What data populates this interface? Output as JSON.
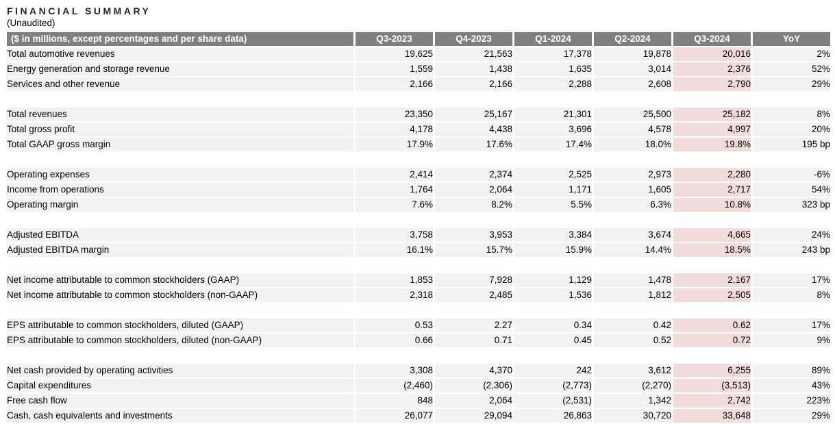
{
  "page": {
    "title": "FINANCIAL SUMMARY",
    "subtitle": "(Unaudited)"
  },
  "colors": {
    "header_bg": "#7f7f7f",
    "header_text": "#ffffff",
    "row_bg": "#f2f2f2",
    "highlight_bg": "#f2dcdb",
    "title_text": "#262626",
    "text": "#000000"
  },
  "table": {
    "header": {
      "label_col": "($ in millions, except percentages and per share data)",
      "columns": [
        "Q3-2023",
        "Q4-2023",
        "Q1-2024",
        "Q2-2024",
        "Q3-2024",
        "YoY"
      ],
      "highlight_column": "Q3-2024"
    },
    "groups": [
      [
        {
          "label": "Total automotive revenues",
          "values": [
            "19,625",
            "21,563",
            "17,378",
            "19,878",
            "20,016",
            "2%"
          ]
        },
        {
          "label": "Energy generation and storage revenue",
          "values": [
            "1,559",
            "1,438",
            "1,635",
            "3,014",
            "2,376",
            "52%"
          ]
        },
        {
          "label": "Services and other revenue",
          "values": [
            "2,166",
            "2,166",
            "2,288",
            "2,608",
            "2,790",
            "29%"
          ]
        }
      ],
      [
        {
          "label": "Total revenues",
          "values": [
            "23,350",
            "25,167",
            "21,301",
            "25,500",
            "25,182",
            "8%"
          ]
        },
        {
          "label": "Total gross profit",
          "values": [
            "4,178",
            "4,438",
            "3,696",
            "4,578",
            "4,997",
            "20%"
          ]
        },
        {
          "label": "Total GAAP gross margin",
          "values": [
            "17.9%",
            "17.6%",
            "17.4%",
            "18.0%",
            "19.8%",
            "195 bp"
          ]
        }
      ],
      [
        {
          "label": "Operating expenses",
          "values": [
            "2,414",
            "2,374",
            "2,525",
            "2,973",
            "2,280",
            "-6%"
          ]
        },
        {
          "label": "Income from operations",
          "values": [
            "1,764",
            "2,064",
            "1,171",
            "1,605",
            "2,717",
            "54%"
          ]
        },
        {
          "label": "Operating margin",
          "values": [
            "7.6%",
            "8.2%",
            "5.5%",
            "6.3%",
            "10.8%",
            "323 bp"
          ]
        }
      ],
      [
        {
          "label": "Adjusted EBITDA",
          "values": [
            "3,758",
            "3,953",
            "3,384",
            "3,674",
            "4,665",
            "24%"
          ]
        },
        {
          "label": "Adjusted EBITDA margin",
          "values": [
            "16.1%",
            "15.7%",
            "15.9%",
            "14.4%",
            "18.5%",
            "243 bp"
          ]
        }
      ],
      [
        {
          "label": "Net income attributable to common stockholders (GAAP)",
          "values": [
            "1,853",
            "7,928",
            "1,129",
            "1,478",
            "2,167",
            "17%"
          ]
        },
        {
          "label": "Net income attributable to common stockholders (non-GAAP)",
          "values": [
            "2,318",
            "2,485",
            "1,536",
            "1,812",
            "2,505",
            "8%"
          ]
        }
      ],
      [
        {
          "label": "EPS attributable to common stockholders, diluted (GAAP)",
          "values": [
            "0.53",
            "2.27",
            "0.34",
            "0.42",
            "0.62",
            "17%"
          ]
        },
        {
          "label": "EPS attributable to common stockholders, diluted (non-GAAP)",
          "values": [
            "0.66",
            "0.71",
            "0.45",
            "0.52",
            "0.72",
            "9%"
          ]
        }
      ],
      [
        {
          "label": "Net cash provided by operating activities",
          "values": [
            "3,308",
            "4,370",
            "242",
            "3,612",
            "6,255",
            "89%"
          ]
        },
        {
          "label": "Capital expenditures",
          "values": [
            "(2,460)",
            "(2,306)",
            "(2,773)",
            "(2,270)",
            "(3,513)",
            "43%"
          ]
        },
        {
          "label": "Free cash flow",
          "values": [
            "848",
            "2,064",
            "(2,531)",
            "1,342",
            "2,742",
            "223%"
          ]
        },
        {
          "label": "Cash, cash equivalents and investments",
          "values": [
            "26,077",
            "29,094",
            "26,863",
            "30,720",
            "33,648",
            "29%"
          ]
        }
      ]
    ]
  }
}
